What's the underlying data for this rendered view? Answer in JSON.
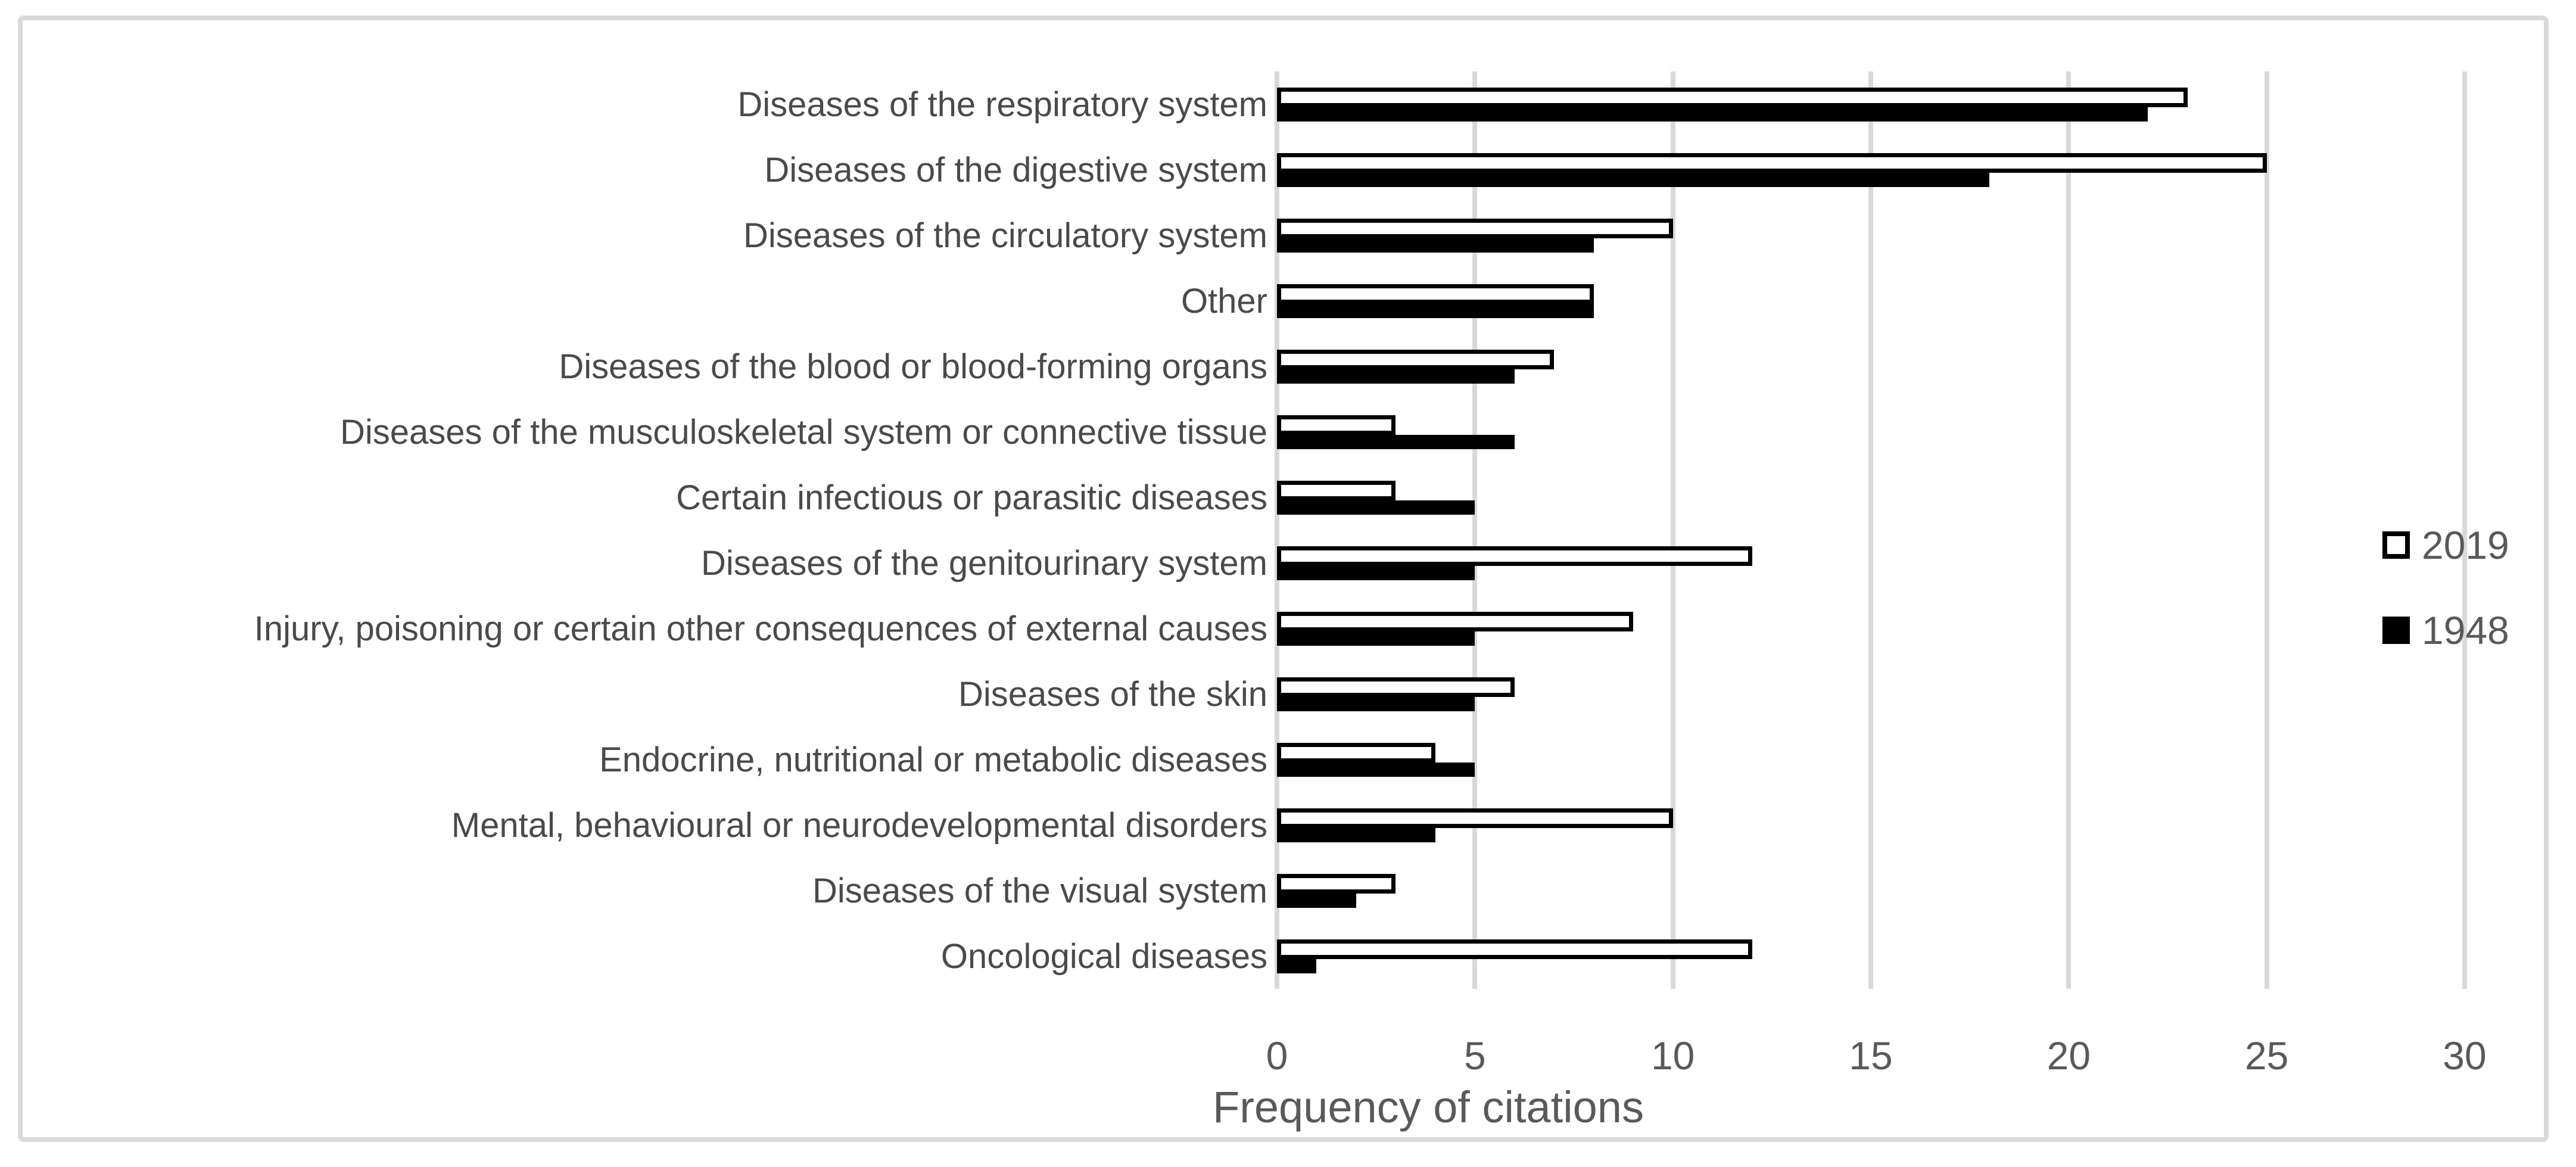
{
  "chart_data": {
    "type": "bar",
    "orientation": "horizontal",
    "title": "",
    "xlabel": "Frequency of citations",
    "ylabel": "",
    "xlim": [
      0,
      30
    ],
    "xticks": [
      0,
      5,
      10,
      15,
      20,
      25,
      30
    ],
    "grid": true,
    "legend_position": "right",
    "categories": [
      "Diseases of the respiratory system",
      "Diseases of the digestive system",
      "Diseases of the circulatory system",
      "Other",
      "Diseases of the blood or blood-forming organs",
      "Diseases of the musculoskeletal system or connective tissue",
      "Certain infectious or parasitic diseases",
      "Diseases of the genitourinary system",
      "Injury, poisoning or certain other consequences of external causes",
      "Diseases of the skin",
      "Endocrine, nutritional or metabolic diseases",
      "Mental, behavioural or neurodevelopmental disorders",
      "Diseases of the visual system",
      "Oncological diseases"
    ],
    "series": [
      {
        "name": "2019",
        "fill": "#FFFFFF",
        "border": "#000000",
        "values": [
          23,
          25,
          10,
          8,
          7,
          3,
          3,
          12,
          9,
          6,
          4,
          10,
          3,
          12
        ]
      },
      {
        "name": "1948",
        "fill": "#000000",
        "border": "#000000",
        "values": [
          22,
          18,
          8,
          8,
          6,
          6,
          5,
          5,
          5,
          5,
          5,
          4,
          2,
          1
        ]
      }
    ]
  },
  "colors": {
    "gridline": "#D9D9D9",
    "frame_border": "#D9D9D9",
    "axis_text": "#595959",
    "category_text": "#4A4A4A",
    "bar_2019_fill": "#FFFFFF",
    "bar_1948_fill": "#000000",
    "background": "#FFFFFF"
  }
}
